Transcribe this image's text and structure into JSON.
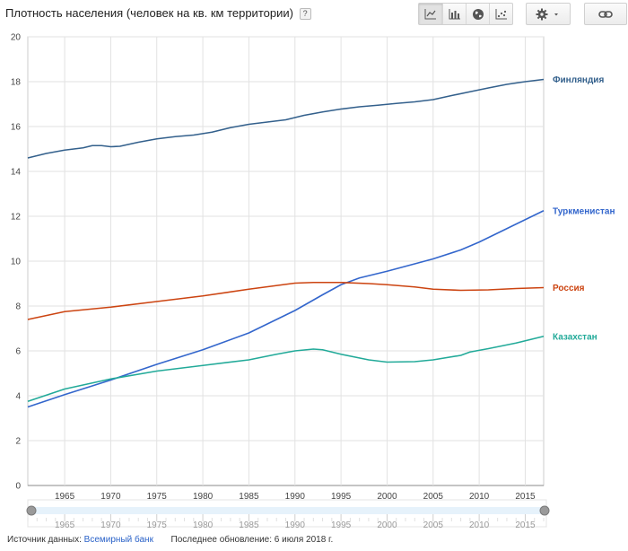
{
  "header": {
    "title": "Плотность населения (человек на кв. км территории)",
    "help_label": "?"
  },
  "toolbar": {
    "chart_types": [
      {
        "icon": "line-chart-icon",
        "active": true
      },
      {
        "icon": "bar-chart-icon",
        "active": false
      },
      {
        "icon": "globe-map-icon",
        "active": false
      },
      {
        "icon": "scatter-chart-icon",
        "active": false
      }
    ],
    "settings_icon": "gear-icon",
    "link_icon": "link-icon"
  },
  "footer": {
    "source_label": "Источник данных:",
    "source_link": "Всемирный банк",
    "updated": "Последнее обновление: 6 июля 2018 г."
  },
  "chart_data": {
    "type": "line",
    "xlim": [
      1961,
      2017
    ],
    "ylim": [
      0,
      20
    ],
    "y_ticks": [
      0,
      2,
      4,
      6,
      8,
      10,
      12,
      14,
      16,
      18,
      20
    ],
    "x_ticks": [
      1965,
      1970,
      1975,
      1980,
      1985,
      1990,
      1995,
      2000,
      2005,
      2010,
      2015
    ],
    "grid": true,
    "legend": "right-end labels",
    "series": [
      {
        "name": "Финляндия",
        "color": "#33608c",
        "points": [
          [
            1961,
            14.6
          ],
          [
            1963,
            14.8
          ],
          [
            1965,
            14.95
          ],
          [
            1967,
            15.05
          ],
          [
            1968,
            15.15
          ],
          [
            1969,
            15.15
          ],
          [
            1970,
            15.1
          ],
          [
            1971,
            15.12
          ],
          [
            1973,
            15.3
          ],
          [
            1975,
            15.45
          ],
          [
            1977,
            15.55
          ],
          [
            1979,
            15.62
          ],
          [
            1981,
            15.75
          ],
          [
            1983,
            15.95
          ],
          [
            1985,
            16.1
          ],
          [
            1987,
            16.2
          ],
          [
            1989,
            16.3
          ],
          [
            1991,
            16.5
          ],
          [
            1993,
            16.65
          ],
          [
            1995,
            16.78
          ],
          [
            1997,
            16.88
          ],
          [
            1999,
            16.95
          ],
          [
            2001,
            17.03
          ],
          [
            2003,
            17.1
          ],
          [
            2005,
            17.2
          ],
          [
            2007,
            17.38
          ],
          [
            2009,
            17.55
          ],
          [
            2011,
            17.72
          ],
          [
            2013,
            17.88
          ],
          [
            2015,
            18.0
          ],
          [
            2017,
            18.1
          ]
        ]
      },
      {
        "name": "Туркменистан",
        "color": "#3366cc",
        "points": [
          [
            1961,
            3.5
          ],
          [
            1965,
            4.05
          ],
          [
            1970,
            4.7
          ],
          [
            1975,
            5.4
          ],
          [
            1980,
            6.05
          ],
          [
            1985,
            6.8
          ],
          [
            1990,
            7.8
          ],
          [
            1993,
            8.5
          ],
          [
            1995,
            8.95
          ],
          [
            1997,
            9.25
          ],
          [
            2000,
            9.55
          ],
          [
            2005,
            10.1
          ],
          [
            2008,
            10.5
          ],
          [
            2010,
            10.85
          ],
          [
            2013,
            11.45
          ],
          [
            2015,
            11.85
          ],
          [
            2017,
            12.25
          ]
        ]
      },
      {
        "name": "Россия",
        "color": "#cc4411",
        "points": [
          [
            1961,
            7.4
          ],
          [
            1965,
            7.75
          ],
          [
            1970,
            7.95
          ],
          [
            1975,
            8.2
          ],
          [
            1980,
            8.45
          ],
          [
            1985,
            8.75
          ],
          [
            1990,
            9.02
          ],
          [
            1992,
            9.05
          ],
          [
            1995,
            9.05
          ],
          [
            1998,
            9.0
          ],
          [
            2000,
            8.95
          ],
          [
            2003,
            8.85
          ],
          [
            2005,
            8.75
          ],
          [
            2008,
            8.7
          ],
          [
            2011,
            8.72
          ],
          [
            2014,
            8.78
          ],
          [
            2017,
            8.82
          ]
        ]
      },
      {
        "name": "Казахстан",
        "color": "#22aa99",
        "points": [
          [
            1961,
            3.75
          ],
          [
            1965,
            4.3
          ],
          [
            1970,
            4.75
          ],
          [
            1975,
            5.1
          ],
          [
            1980,
            5.35
          ],
          [
            1985,
            5.6
          ],
          [
            1988,
            5.85
          ],
          [
            1990,
            6.0
          ],
          [
            1992,
            6.08
          ],
          [
            1993,
            6.05
          ],
          [
            1995,
            5.85
          ],
          [
            1998,
            5.6
          ],
          [
            2000,
            5.5
          ],
          [
            2003,
            5.52
          ],
          [
            2005,
            5.6
          ],
          [
            2008,
            5.8
          ],
          [
            2009,
            5.95
          ],
          [
            2011,
            6.1
          ],
          [
            2014,
            6.35
          ],
          [
            2017,
            6.65
          ]
        ]
      }
    ]
  }
}
